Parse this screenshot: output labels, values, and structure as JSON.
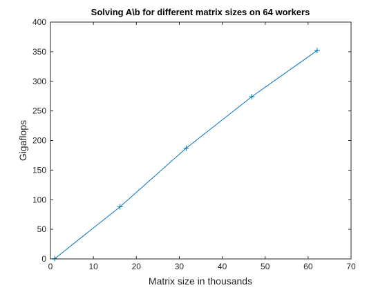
{
  "chart_data": {
    "type": "line",
    "title": "Solving A\\b for different matrix sizes on 64 workers",
    "xlabel": "Matrix size in thousands",
    "ylabel": "Gigaflops",
    "xlim": [
      0,
      70
    ],
    "ylim": [
      0,
      400
    ],
    "xticks": [
      0,
      10,
      20,
      30,
      40,
      50,
      60,
      70
    ],
    "yticks": [
      0,
      50,
      100,
      150,
      200,
      250,
      300,
      350,
      400
    ],
    "grid": false,
    "marker": "+",
    "series": [
      {
        "x": [
          1,
          16.2,
          31.6,
          46.9,
          62.1
        ],
        "y": [
          0.5,
          88,
          187,
          274,
          352
        ],
        "color": "#0072bd"
      }
    ]
  }
}
